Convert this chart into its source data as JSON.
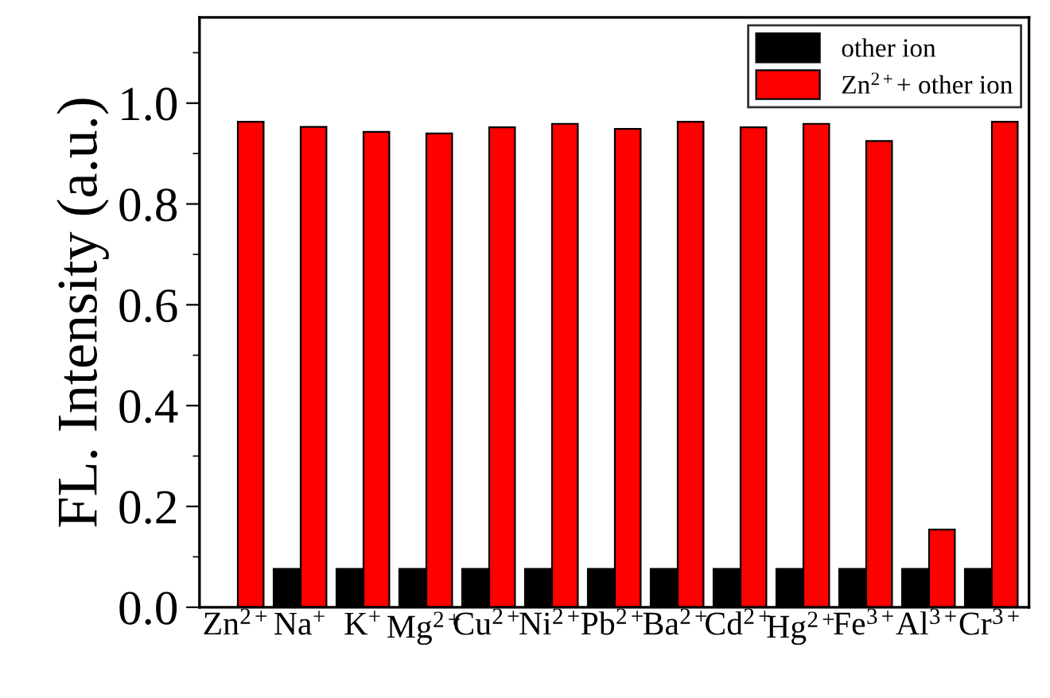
{
  "chart_data": {
    "type": "bar",
    "ylabel": "FL. Intensity (a.u.)",
    "categories": [
      "Zn$^{2+}$",
      "Na$^{+}$",
      "K$^{+}$",
      "Mg$^{2+}$",
      "Cu$^{2+}$",
      "Ni$^{2+}$",
      "Pb$^{2+}$",
      "Ba$^{2+}$",
      "Cd$^{2+}$",
      "Hg$^{2+}$",
      "Fe$^{3+}$",
      "Al$^{3+}$",
      "Cr$^{3+}$"
    ],
    "series": [
      {
        "name": "other ion",
        "color": "#000000",
        "values": [
          null,
          0.076,
          0.076,
          0.076,
          0.076,
          0.076,
          0.076,
          0.076,
          0.076,
          0.076,
          0.076,
          0.076,
          0.076
        ]
      },
      {
        "name": "Zn$^{2+}$+ other ion",
        "color": "#ff0000",
        "values": [
          0.963,
          0.953,
          0.943,
          0.94,
          0.952,
          0.959,
          0.949,
          0.963,
          0.952,
          0.959,
          0.925,
          0.154,
          0.963
        ]
      }
    ],
    "ylim": [
      0,
      1.17
    ],
    "yticks": [
      {
        "value": 0,
        "label": "0.0"
      },
      0.2,
      0.4,
      0.6,
      0.8,
      {
        "value": 1,
        "label": "1.0"
      }
    ],
    "grid": false,
    "legend": "top right"
  }
}
